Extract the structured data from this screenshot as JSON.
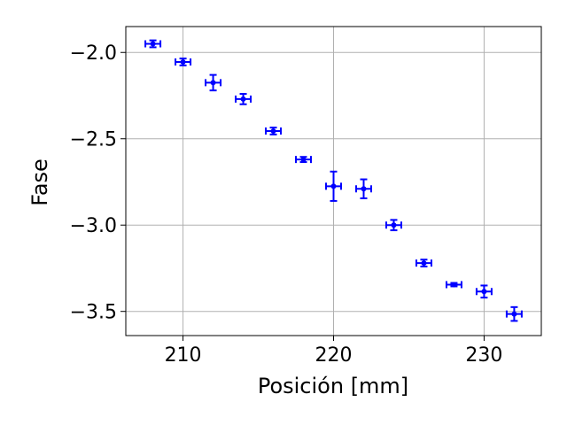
{
  "chart_data": {
    "type": "scatter",
    "title": "",
    "xlabel": "Posición [mm]",
    "ylabel": "Fase",
    "xlim": [
      206.2,
      233.8
    ],
    "ylim": [
      -3.64,
      -1.85
    ],
    "grid": true,
    "xticks": [
      210,
      220,
      230
    ],
    "xtick_labels": [
      "210",
      "220",
      "230"
    ],
    "yticks": [
      -2.0,
      -2.5,
      -3.0,
      -3.5
    ],
    "ytick_labels": [
      "−2.0",
      "−2.5",
      "−3.0",
      "−3.5"
    ],
    "color": "#0000ff",
    "series": [
      {
        "x": [
          208,
          210,
          212,
          214,
          216,
          218,
          220,
          222,
          224,
          226,
          228,
          230,
          232
        ],
        "y": [
          -1.95,
          -2.055,
          -2.175,
          -2.27,
          -2.455,
          -2.62,
          -2.775,
          -2.79,
          -3.0,
          -3.22,
          -3.345,
          -3.385,
          -3.515
        ],
        "xerr": [
          0.5,
          0.5,
          0.5,
          0.5,
          0.5,
          0.5,
          0.5,
          0.5,
          0.5,
          0.5,
          0.5,
          0.5,
          0.5
        ],
        "yerr": [
          0.02,
          0.02,
          0.045,
          0.03,
          0.02,
          0.015,
          0.085,
          0.055,
          0.03,
          0.02,
          0.01,
          0.035,
          0.04
        ]
      }
    ]
  }
}
